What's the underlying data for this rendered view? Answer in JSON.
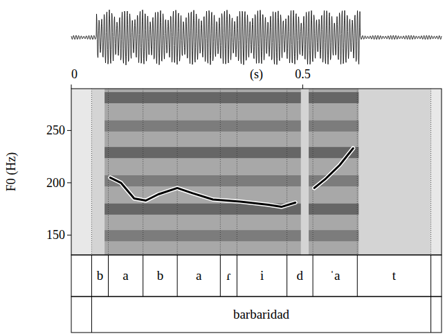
{
  "chart_data": {
    "type": "line",
    "x_label": "(s)",
    "y_label": "F0 (Hz)",
    "xlim": [
      0,
      0.8
    ],
    "xticks": [
      0,
      0.5
    ],
    "ylim": [
      131,
      290
    ],
    "yticks": [
      150,
      200,
      250
    ],
    "color": "#000000",
    "x": [
      0.084,
      0.107,
      0.136,
      0.161,
      0.188,
      0.229,
      0.262,
      0.306,
      0.365,
      0.425,
      0.454,
      0.484,
      null,
      0.525,
      0.55,
      0.58,
      0.609
    ],
    "values": [
      205,
      200,
      185,
      183,
      189,
      195,
      190,
      184,
      182,
      179,
      177,
      181,
      null,
      195,
      204,
      217,
      233
    ],
    "tiers": [
      {
        "intervals": [
          {
            "start": 0.044,
            "end": 0.08,
            "label": "b"
          },
          {
            "start": 0.08,
            "end": 0.155,
            "label": "a"
          },
          {
            "start": 0.155,
            "end": 0.229,
            "label": "b"
          },
          {
            "start": 0.229,
            "end": 0.322,
            "label": "a"
          },
          {
            "start": 0.322,
            "end": 0.358,
            "label": "ɾ"
          },
          {
            "start": 0.358,
            "end": 0.466,
            "label": "i"
          },
          {
            "start": 0.466,
            "end": 0.522,
            "label": "d"
          },
          {
            "start": 0.522,
            "end": 0.618,
            "label": "ˈa"
          },
          {
            "start": 0.618,
            "end": 0.777,
            "label": "t"
          }
        ]
      },
      {
        "intervals": [
          {
            "start": 0.044,
            "end": 0.777,
            "label": "barbaridad"
          }
        ]
      }
    ]
  }
}
